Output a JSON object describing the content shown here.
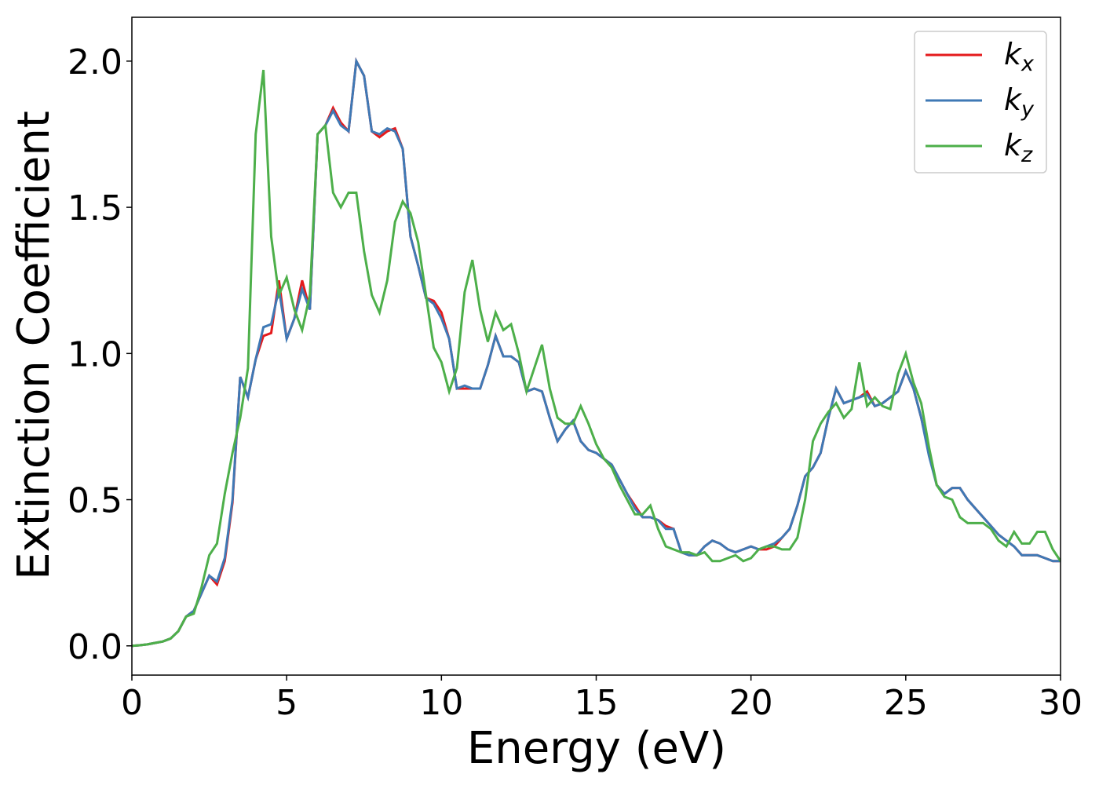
{
  "chart_data": {
    "type": "line",
    "x_label": "Energy (eV)",
    "y_label": "Extinction Coefficient",
    "xlim": [
      0,
      30
    ],
    "ylim": [
      -0.1,
      2.15
    ],
    "xticks": [
      0,
      5,
      10,
      15,
      20,
      25,
      30
    ],
    "yticks": [
      {
        "value": 0,
        "label": "0.0"
      },
      0.5,
      {
        "value": 1,
        "label": "1.0"
      },
      1.5,
      {
        "value": 2,
        "label": "2.0"
      }
    ],
    "grid": false,
    "legend": "upper right",
    "x": [
      0,
      0.25,
      0.5,
      0.75,
      1,
      1.25,
      1.5,
      1.75,
      2,
      2.25,
      2.5,
      2.75,
      3,
      3.25,
      3.5,
      3.75,
      4,
      4.25,
      4.5,
      4.75,
      5,
      5.25,
      5.5,
      5.75,
      6,
      6.25,
      6.5,
      6.75,
      7,
      7.25,
      7.5,
      7.75,
      8,
      8.25,
      8.5,
      8.75,
      9,
      9.25,
      9.5,
      9.75,
      10,
      10.25,
      10.5,
      10.75,
      11,
      11.25,
      11.5,
      11.75,
      12,
      12.25,
      12.5,
      12.75,
      13,
      13.25,
      13.5,
      13.75,
      14,
      14.25,
      14.5,
      14.75,
      15,
      15.25,
      15.5,
      15.75,
      16,
      16.25,
      16.5,
      16.75,
      17,
      17.25,
      17.5,
      17.75,
      18,
      18.25,
      18.5,
      18.75,
      19,
      19.25,
      19.5,
      19.75,
      20,
      20.25,
      20.5,
      20.75,
      21,
      21.25,
      21.5,
      21.75,
      22,
      22.25,
      22.5,
      22.75,
      23,
      23.25,
      23.5,
      23.75,
      24,
      24.25,
      24.5,
      24.75,
      25,
      25.25,
      25.5,
      25.75,
      26,
      26.25,
      26.5,
      26.75,
      27,
      27.25,
      27.5,
      27.75,
      28,
      28.25,
      28.5,
      28.75,
      29,
      29.25,
      29.5,
      29.75,
      30
    ],
    "series": [
      {
        "name": "kx",
        "color": "#e41a1c",
        "values": [
          0,
          0.002,
          0.005,
          0.01,
          0.015,
          0.025,
          0.05,
          0.1,
          0.12,
          0.18,
          0.24,
          0.21,
          0.29,
          0.49,
          0.92,
          0.85,
          0.98,
          1.06,
          1.07,
          1.25,
          1.05,
          1.12,
          1.25,
          1.15,
          1.75,
          1.78,
          1.84,
          1.79,
          1.76,
          2.0,
          1.95,
          1.76,
          1.74,
          1.76,
          1.77,
          1.7,
          1.4,
          1.3,
          1.19,
          1.18,
          1.14,
          1.05,
          0.88,
          0.88,
          0.88,
          0.88,
          0.96,
          1.06,
          0.99,
          0.99,
          0.97,
          0.87,
          0.88,
          0.87,
          0.78,
          0.7,
          0.74,
          0.77,
          0.7,
          0.67,
          0.66,
          0.64,
          0.62,
          0.57,
          0.52,
          0.48,
          0.44,
          0.44,
          0.43,
          0.41,
          0.4,
          0.32,
          0.31,
          0.31,
          0.34,
          0.36,
          0.35,
          0.33,
          0.32,
          0.33,
          0.34,
          0.33,
          0.33,
          0.34,
          0.37,
          0.4,
          0.48,
          0.58,
          0.61,
          0.66,
          0.78,
          0.88,
          0.83,
          0.84,
          0.85,
          0.87,
          0.82,
          0.83,
          0.85,
          0.87,
          0.94,
          0.88,
          0.78,
          0.66,
          0.55,
          0.52,
          0.54,
          0.54,
          0.5,
          0.47,
          0.44,
          0.41,
          0.38,
          0.36,
          0.34,
          0.31,
          0.31,
          0.31,
          0.3,
          0.29,
          0.29
        ]
      },
      {
        "name": "ky",
        "color": "#3f79b5",
        "values": [
          0,
          0.002,
          0.005,
          0.01,
          0.015,
          0.025,
          0.05,
          0.1,
          0.12,
          0.18,
          0.24,
          0.22,
          0.3,
          0.5,
          0.92,
          0.85,
          0.98,
          1.09,
          1.1,
          1.22,
          1.05,
          1.12,
          1.22,
          1.15,
          1.75,
          1.78,
          1.83,
          1.78,
          1.76,
          2.0,
          1.95,
          1.76,
          1.75,
          1.77,
          1.76,
          1.7,
          1.4,
          1.3,
          1.19,
          1.17,
          1.12,
          1.05,
          0.88,
          0.89,
          0.88,
          0.88,
          0.96,
          1.06,
          0.99,
          0.99,
          0.97,
          0.87,
          0.88,
          0.87,
          0.78,
          0.7,
          0.74,
          0.77,
          0.7,
          0.67,
          0.66,
          0.64,
          0.62,
          0.57,
          0.52,
          0.47,
          0.44,
          0.44,
          0.43,
          0.4,
          0.4,
          0.32,
          0.31,
          0.31,
          0.34,
          0.36,
          0.35,
          0.33,
          0.32,
          0.33,
          0.34,
          0.33,
          0.34,
          0.35,
          0.37,
          0.4,
          0.48,
          0.58,
          0.61,
          0.66,
          0.78,
          0.88,
          0.83,
          0.84,
          0.85,
          0.86,
          0.82,
          0.83,
          0.85,
          0.87,
          0.94,
          0.88,
          0.78,
          0.65,
          0.55,
          0.52,
          0.54,
          0.54,
          0.5,
          0.47,
          0.44,
          0.41,
          0.38,
          0.36,
          0.34,
          0.31,
          0.31,
          0.31,
          0.3,
          0.29,
          0.29
        ]
      },
      {
        "name": "kz",
        "color": "#4daf4a",
        "values": [
          0,
          0.002,
          0.005,
          0.01,
          0.015,
          0.025,
          0.05,
          0.1,
          0.11,
          0.2,
          0.31,
          0.35,
          0.52,
          0.66,
          0.78,
          0.95,
          1.75,
          1.97,
          1.4,
          1.2,
          1.26,
          1.15,
          1.08,
          1.2,
          1.75,
          1.78,
          1.55,
          1.5,
          1.55,
          1.55,
          1.35,
          1.2,
          1.14,
          1.25,
          1.45,
          1.52,
          1.48,
          1.38,
          1.2,
          1.02,
          0.97,
          0.87,
          0.95,
          1.21,
          1.32,
          1.15,
          1.04,
          1.14,
          1.08,
          1.1,
          1.0,
          0.87,
          0.95,
          1.03,
          0.88,
          0.78,
          0.76,
          0.76,
          0.82,
          0.76,
          0.69,
          0.64,
          0.61,
          0.55,
          0.5,
          0.45,
          0.45,
          0.48,
          0.4,
          0.34,
          0.33,
          0.32,
          0.32,
          0.31,
          0.32,
          0.29,
          0.29,
          0.3,
          0.31,
          0.29,
          0.3,
          0.33,
          0.34,
          0.34,
          0.33,
          0.33,
          0.37,
          0.5,
          0.7,
          0.76,
          0.8,
          0.83,
          0.78,
          0.81,
          0.97,
          0.82,
          0.85,
          0.82,
          0.81,
          0.93,
          1.0,
          0.9,
          0.83,
          0.68,
          0.55,
          0.51,
          0.5,
          0.44,
          0.42,
          0.42,
          0.42,
          0.4,
          0.36,
          0.34,
          0.39,
          0.35,
          0.35,
          0.39,
          0.39,
          0.33,
          0.29
        ]
      }
    ]
  }
}
